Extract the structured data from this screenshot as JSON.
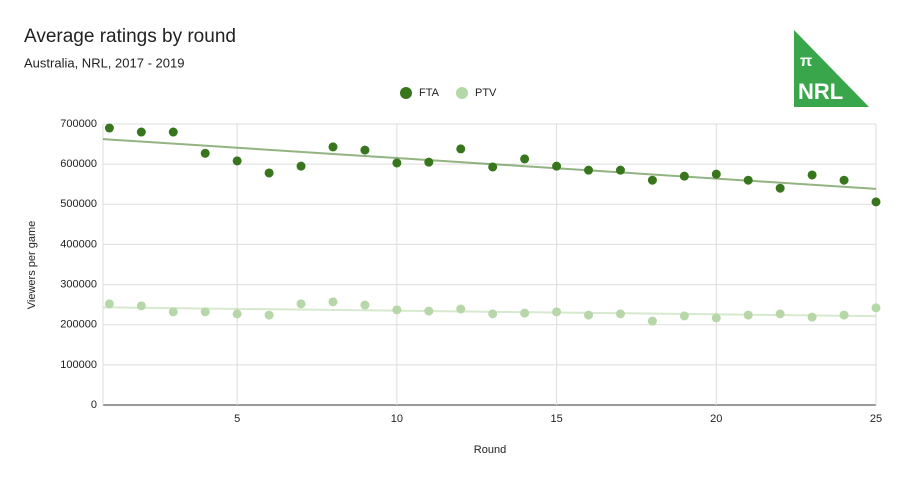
{
  "chart_data": {
    "type": "scatter",
    "title": "Average ratings by round",
    "subtitle": "Australia, NRL, 2017 - 2019",
    "x_label": "Round",
    "y_label": "Viewers per game",
    "x": [
      1,
      2,
      3,
      4,
      5,
      6,
      7,
      8,
      9,
      10,
      11,
      12,
      13,
      14,
      15,
      16,
      17,
      18,
      19,
      20,
      21,
      22,
      23,
      24,
      25
    ],
    "series": [
      {
        "name": "FTA",
        "color": "#38761d",
        "values": [
          690000,
          680000,
          680000,
          627000,
          608000,
          578000,
          595000,
          643000,
          635000,
          603000,
          605000,
          638000,
          593000,
          613000,
          595000,
          585000,
          585000,
          560000,
          570000,
          575000,
          560000,
          540000,
          573000,
          560000,
          506000
        ]
      },
      {
        "name": "PTV",
        "color": "#b6d7a8",
        "values": [
          252000,
          247000,
          232000,
          232000,
          227000,
          224000,
          252000,
          257000,
          249000,
          237000,
          234000,
          239000,
          227000,
          229000,
          232000,
          224000,
          227000,
          209000,
          222000,
          217000,
          224000,
          227000,
          219000,
          224000,
          242000
        ]
      }
    ],
    "xlim": [
      0.8,
      25
    ],
    "xticks": [
      5,
      10,
      15,
      20,
      25
    ],
    "ylim": [
      0,
      700000
    ],
    "yticks": [
      0,
      100000,
      200000,
      300000,
      400000,
      500000,
      600000,
      700000
    ],
    "grid": true,
    "trendline": true,
    "legend": "top"
  },
  "logo": {
    "symbol": "π",
    "text": "NRL",
    "color": "#3aa64b"
  }
}
